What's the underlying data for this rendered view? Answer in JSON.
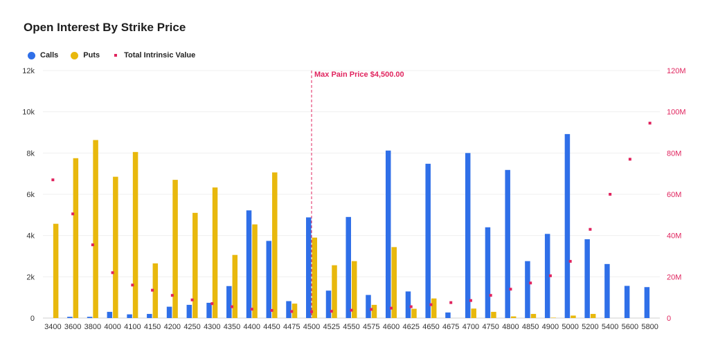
{
  "chart_data": {
    "type": "bar",
    "title": "Open Interest By Strike Price",
    "categories": [
      "3400",
      "3600",
      "3800",
      "4000",
      "4100",
      "4150",
      "4200",
      "4250",
      "4300",
      "4350",
      "4400",
      "4450",
      "4475",
      "4500",
      "4525",
      "4550",
      "4575",
      "4600",
      "4625",
      "4650",
      "4675",
      "4700",
      "4750",
      "4800",
      "4850",
      "4900",
      "5000",
      "5200",
      "5400",
      "5600",
      "5800"
    ],
    "series": [
      {
        "name": "Calls",
        "type": "bar",
        "axis": "left",
        "color": "#2f6fe8",
        "values": [
          0,
          60,
          60,
          300,
          180,
          200,
          550,
          640,
          740,
          1550,
          5220,
          3740,
          820,
          4880,
          1330,
          4900,
          1120,
          8120,
          1290,
          7480,
          270,
          8000,
          4400,
          7180,
          2760,
          4080,
          8920,
          3820,
          2620,
          1560,
          1500
        ]
      },
      {
        "name": "Puts",
        "type": "bar",
        "axis": "left",
        "color": "#e8b80d",
        "values": [
          4570,
          7750,
          8630,
          6850,
          8050,
          2650,
          6700,
          5100,
          6330,
          3060,
          4540,
          7060,
          700,
          3900,
          2560,
          2760,
          640,
          3440,
          450,
          950,
          0,
          460,
          300,
          80,
          200,
          20,
          120,
          200,
          0,
          0,
          0
        ]
      },
      {
        "name": "Total Intrinsic Value",
        "type": "scatter",
        "axis": "right",
        "color": "#e0245e",
        "values": [
          67000000,
          50500000,
          35500000,
          22000000,
          16000000,
          13500000,
          11000000,
          8800000,
          7000000,
          5500000,
          4300000,
          3700000,
          3200000,
          3100000,
          3300000,
          3800000,
          4200000,
          4800000,
          5500000,
          6500000,
          7500000,
          8500000,
          11000000,
          14000000,
          17000000,
          20500000,
          27500000,
          43000000,
          60000000,
          77000000,
          94500000
        ]
      }
    ],
    "y_left": {
      "min": 0,
      "max": 12000,
      "ticks": [
        0,
        2000,
        4000,
        6000,
        8000,
        10000,
        12000
      ],
      "tick_labels": [
        "0",
        "2k",
        "4k",
        "6k",
        "8k",
        "10k",
        "12k"
      ]
    },
    "y_right": {
      "min": 0,
      "max": 120000000,
      "ticks": [
        0,
        20000000,
        40000000,
        60000000,
        80000000,
        100000000,
        120000000
      ],
      "tick_labels": [
        "0",
        "20M",
        "40M",
        "60M",
        "80M",
        "100M",
        "120M"
      ]
    },
    "annotation": {
      "category": "4500",
      "label": "Max Pain Price $4,500.00"
    },
    "grid": true,
    "legend_position": "top-left"
  }
}
